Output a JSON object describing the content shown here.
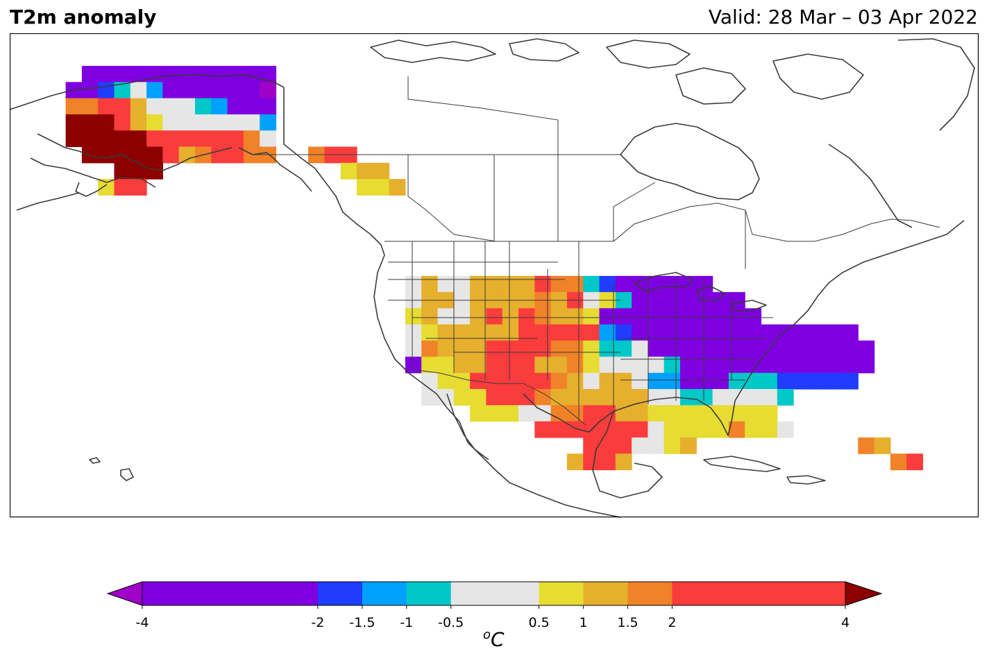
{
  "header": {
    "title": "T2m anomaly",
    "valid": "Valid: 28 Mar – 03 Apr 2022"
  },
  "colorbar": {
    "unit_base": "C",
    "unit_sup": "o",
    "bins": [
      {
        "from": -4,
        "to": -2,
        "color": "#7e00e0"
      },
      {
        "from": -2,
        "to": -1.5,
        "color": "#203cff"
      },
      {
        "from": -1.5,
        "to": -1,
        "color": "#00a0ff"
      },
      {
        "from": -1,
        "to": -0.5,
        "color": "#00c8c8"
      },
      {
        "from": -0.5,
        "to": 0.5,
        "color": "#e6e6e6"
      },
      {
        "from": 0.5,
        "to": 1,
        "color": "#e6dc32"
      },
      {
        "from": 1,
        "to": 1.5,
        "color": "#e6af2d"
      },
      {
        "from": 1.5,
        "to": 2,
        "color": "#f08228"
      },
      {
        "from": 2,
        "to": 4,
        "color": "#fa3c3c"
      }
    ],
    "under_color": "#a000c8",
    "over_color": "#8c0000",
    "tick_labels": [
      "-4",
      "-2",
      "-1.5",
      "-1",
      "-0.5",
      "0.5",
      "1",
      "1.5",
      "2",
      "4"
    ],
    "tick_values": [
      -4,
      -2,
      -1.5,
      -1,
      -0.5,
      0.5,
      1,
      1.5,
      2,
      4
    ]
  },
  "map": {
    "legend": {
      "P": "#a000c8",
      "V": "#7e00e0",
      "B": "#203cff",
      "S": "#00a0ff",
      "C": "#00c8c8",
      "G": "#e6e6e6",
      "Y": "#e6dc32",
      "O": "#e6af2d",
      "A": "#f08228",
      "R": "#fa3c3c",
      "D": "#8c0000"
    },
    "grid_rows": [
      "...VVVVVVVVVVVV.......................................................................",
      "..VVBCGSVVVVVVP.......................................................................",
      "..AARROGGGCSVVV.......................................................................",
      "..DDDROYGGGGGGS.......................................................................",
      "..DDDDDRRRRRRAG.......................................................................",
      "...DDDDDROARRAA..ARR..................................................................",
      ".....DDD...........YOO................................................................",
      "....YRR.............YYO...............................................................",
      "......................................................................................",
      "......................................................................................",
      "......................................................................................",
      "......................................................................................",
      "......................................................................................",
      ".......................GOGGOOOORAACBVVVVVV............................................",
      ".......................GOOGOOOOAORGYCVVVVVVV.........................VVV..............",
      ".......................YOGGORORAOOYVVVVVVVVVV..........................VVVSS..........",
      ".......................GYOOOOORRRRRSBVVVVVVVVVVVVVV....................VVVVVS.........",
      ".......................GAOOORRRRAAYCCGVVVVVVVVVVVVVV...........................",
      ".......................VYYOORRROOAYGGGGCVVVVVVVVVVVV...........................",
      "........................GYYRRRRRAOGOOGSSVVVCCCBBBBB............................",
      "........................GGYYRRRAOOOOOOGGCCGGGGC................................",
      "...........................YYYGGAARROOYYYYYYYY.................................",
      "...............................RRRRRRRGYYYYAYYG................................",
      "..................................RRRGGYO..........AO..........................",
      ".................................ORRO................AR........................"
    ]
  }
}
